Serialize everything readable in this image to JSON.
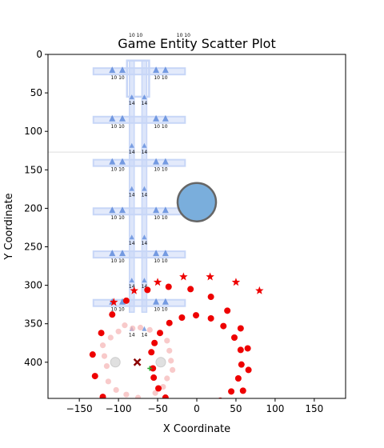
{
  "chart_data": {
    "type": "scatter",
    "title": "Game Entity Scatter Plot",
    "xlabel": "X Coordinate",
    "ylabel": "Y Coordinate",
    "xlim": [
      -190,
      190
    ],
    "ylim": [
      447,
      0
    ],
    "y_inverted": true,
    "grid": false,
    "legend": "none",
    "xticks": [
      -150,
      -100,
      -50,
      0,
      50,
      100,
      150
    ],
    "yticks": [
      0,
      50,
      100,
      150,
      200,
      250,
      300,
      350,
      400
    ],
    "colors": {
      "enemy": "#ee0000",
      "enemy_faded": "#f5b3b3",
      "tower": "#4f7fd8",
      "tower_frame": "#c7d6f7",
      "unit": "#1f77b4",
      "marker_x": "#8b0000",
      "marker_plus": "#2ca02c"
    },
    "tower_rows": [
      {
        "y": 22,
        "label_left": "10",
        "label_right": "10",
        "sub_label": "14"
      },
      {
        "y": 85,
        "label_left": "10",
        "label_right": "10",
        "sub_label": "14"
      },
      {
        "y": 141,
        "label_left": "10",
        "label_right": "10",
        "sub_label": "14"
      },
      {
        "y": 204,
        "label_left": "10",
        "label_right": "10",
        "sub_label": "14"
      },
      {
        "y": 260,
        "label_left": "10",
        "label_right": "10",
        "sub_label": "14"
      },
      {
        "y": 323,
        "label_left": "10",
        "label_right": "10",
        "sub_label": "14"
      }
    ],
    "tower_offsets": [
      -108,
      -95,
      -52,
      -40
    ],
    "tower_column_x": [
      -83,
      -67
    ],
    "top_labels": [
      {
        "x": -78,
        "y": -26,
        "text": "10 10"
      },
      {
        "x": -17,
        "y": -26,
        "text": "10 10"
      }
    ],
    "enemies_solid": [
      {
        "x": -133,
        "y": 390
      },
      {
        "x": -130,
        "y": 418
      },
      {
        "x": -122,
        "y": 362
      },
      {
        "x": -120,
        "y": 445
      },
      {
        "x": -108,
        "y": 338
      },
      {
        "x": -90,
        "y": 320
      },
      {
        "x": -63,
        "y": 306
      },
      {
        "x": -58,
        "y": 387
      },
      {
        "x": -56,
        "y": 408
      },
      {
        "x": -55,
        "y": 420
      },
      {
        "x": -54,
        "y": 375
      },
      {
        "x": -49,
        "y": 434
      },
      {
        "x": -47,
        "y": 362
      },
      {
        "x": -40,
        "y": 446
      },
      {
        "x": -36,
        "y": 302
      },
      {
        "x": -35,
        "y": 349
      },
      {
        "x": -19,
        "y": 342
      },
      {
        "x": -8,
        "y": 305
      },
      {
        "x": -1,
        "y": 339
      },
      {
        "x": 18,
        "y": 315
      },
      {
        "x": 18,
        "y": 343
      },
      {
        "x": 34,
        "y": 353
      },
      {
        "x": 39,
        "y": 333
      },
      {
        "x": 44,
        "y": 438
      },
      {
        "x": 48,
        "y": 368
      },
      {
        "x": 53,
        "y": 421
      },
      {
        "x": 56,
        "y": 356
      },
      {
        "x": 56,
        "y": 384
      },
      {
        "x": 57,
        "y": 403
      },
      {
        "x": 59,
        "y": 437
      },
      {
        "x": 65,
        "y": 382
      },
      {
        "x": 66,
        "y": 410
      },
      {
        "x": 30,
        "y": 450
      }
    ],
    "enemies_faded": [
      {
        "x": -120,
        "y": 378
      },
      {
        "x": -118,
        "y": 392
      },
      {
        "x": -115,
        "y": 405
      },
      {
        "x": -113,
        "y": 425
      },
      {
        "x": -110,
        "y": 368
      },
      {
        "x": -103,
        "y": 436
      },
      {
        "x": -100,
        "y": 360
      },
      {
        "x": -92,
        "y": 352
      },
      {
        "x": -90,
        "y": 442
      },
      {
        "x": -82,
        "y": 356
      },
      {
        "x": -75,
        "y": 446
      },
      {
        "x": -72,
        "y": 355
      },
      {
        "x": -60,
        "y": 358
      },
      {
        "x": -53,
        "y": 440
      },
      {
        "x": -43,
        "y": 432
      },
      {
        "x": -38,
        "y": 421
      },
      {
        "x": -38,
        "y": 372
      },
      {
        "x": -35,
        "y": 385
      },
      {
        "x": -33,
        "y": 398
      },
      {
        "x": -31,
        "y": 410
      }
    ],
    "stars": [
      {
        "x": -106,
        "y": 322
      },
      {
        "x": -80,
        "y": 307
      },
      {
        "x": -50,
        "y": 296
      },
      {
        "x": -17,
        "y": 289
      },
      {
        "x": 17,
        "y": 289
      },
      {
        "x": 50,
        "y": 296
      },
      {
        "x": 80,
        "y": 307
      }
    ],
    "units": [
      {
        "x": 0,
        "y": 192,
        "size": "large"
      },
      {
        "x": -104,
        "y": 400,
        "size": "small",
        "faded": true
      },
      {
        "x": -46,
        "y": 400,
        "size": "small",
        "faded": true
      }
    ],
    "markers": [
      {
        "x": -76,
        "y": 400,
        "shape": "x"
      },
      {
        "x": -60,
        "y": 408,
        "shape": "plus"
      }
    ]
  }
}
